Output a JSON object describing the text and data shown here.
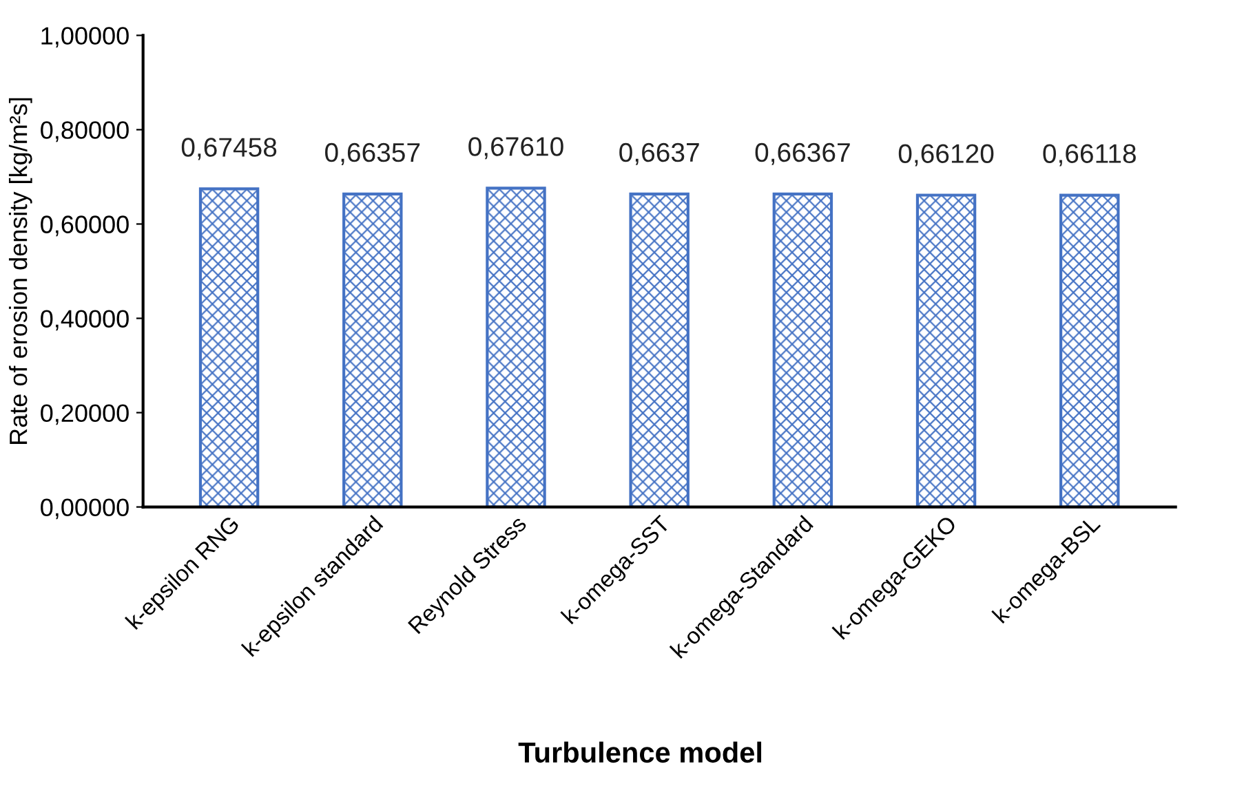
{
  "chart_data": {
    "type": "bar",
    "xlabel": "Turbulence model",
    "ylabel": "Rate of erosion density [kg/m²s]",
    "categories": [
      "k-epsilon RNG",
      "k-epsilon standard",
      "Reynold Stress",
      "k-omega-SST",
      "k-omega-Standard",
      "k-omega-GEKO",
      "k-omega-BSL"
    ],
    "values": [
      0.67458,
      0.66357,
      0.6761,
      0.6637,
      0.66367,
      0.6612,
      0.66118
    ],
    "value_labels": [
      "0,67458",
      "0,66357",
      "0,67610",
      "0,6637",
      "0,66367",
      "0,66120",
      "0,66118"
    ],
    "color": "#4472c4",
    "ylim": [
      0,
      1
    ],
    "yticks": [
      {
        "value": 0,
        "label": "0,00000"
      },
      {
        "value": 0.2,
        "label": "0,20000"
      },
      {
        "value": 0.4,
        "label": "0,40000"
      },
      {
        "value": 0.6,
        "label": "0,60000"
      },
      {
        "value": 0.8,
        "label": "0,80000"
      },
      {
        "value": 1,
        "label": "1,00000"
      }
    ],
    "grid": false
  }
}
